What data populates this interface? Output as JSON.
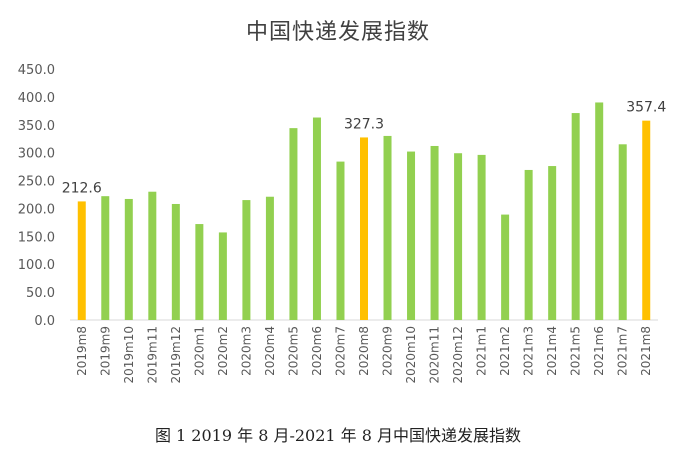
{
  "chart_data": {
    "type": "bar",
    "title": "中国快递发展指数",
    "caption": "图 1 2019 年 8 月-2021 年 8 月中国快递发展指数",
    "ylim": [
      0,
      450
    ],
    "yticks": [
      "0.0",
      "50.0",
      "100.0",
      "150.0",
      "200.0",
      "250.0",
      "300.0",
      "350.0",
      "400.0",
      "450.0"
    ],
    "grid": false,
    "legend": "none",
    "colors": {
      "default": "#92D050",
      "highlight": "#FFC000",
      "axis": "#d9d9d9",
      "text": "#595959"
    },
    "categories": [
      "2019m8",
      "2019m9",
      "2019m10",
      "2019m11",
      "2019m12",
      "2020m1",
      "2020m2",
      "2020m3",
      "2020m4",
      "2020m5",
      "2020m6",
      "2020m7",
      "2020m8",
      "2020m9",
      "2020m10",
      "2020m11",
      "2020m12",
      "2021m1",
      "2021m2",
      "2021m3",
      "2021m4",
      "2021m5",
      "2021m6",
      "2021m7",
      "2021m8"
    ],
    "values": [
      212.6,
      222,
      217,
      230,
      208,
      172,
      157,
      215,
      221,
      344,
      363,
      284,
      327.3,
      330,
      302,
      312,
      299,
      296,
      189,
      269,
      276,
      371,
      390,
      315,
      357.4
    ],
    "highlight_indices": [
      0,
      12,
      24
    ],
    "data_labels": [
      {
        "index": 0,
        "text": "212.6"
      },
      {
        "index": 12,
        "text": "327.3"
      },
      {
        "index": 24,
        "text": "357.4"
      }
    ]
  }
}
